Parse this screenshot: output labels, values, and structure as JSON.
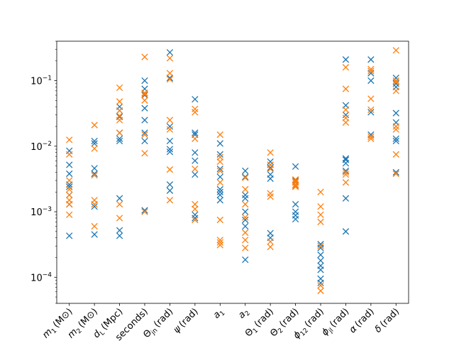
{
  "chart_data": {
    "type": "scatter",
    "title": "",
    "xlabel": "",
    "ylabel": "",
    "yscale": "log",
    "ylim": [
      4e-05,
      0.4
    ],
    "grid": false,
    "legend": "none",
    "marker": "x",
    "y_ticks": [
      {
        "value": 0.0001,
        "label": "10^-4"
      },
      {
        "value": 0.001,
        "label": "10^-3"
      },
      {
        "value": 0.01,
        "label": "10^-2"
      },
      {
        "value": 0.1,
        "label": "10^-1"
      }
    ],
    "categories": [
      {
        "base": "m",
        "sub": "1",
        "unit": "(M⊙)"
      },
      {
        "base": "m",
        "sub": "2",
        "unit": "(M⊙)"
      },
      {
        "base": "d",
        "sub": "L",
        "unit": "(Mpc)"
      },
      {
        "base": "seconds)",
        "sub": "",
        "unit": ""
      },
      {
        "base": "Θ",
        "sub": "jn",
        "unit": "(rad)"
      },
      {
        "base": "ψ",
        "sub": "",
        "unit": "(rad)"
      },
      {
        "base": "a",
        "sub": "1",
        "unit": ""
      },
      {
        "base": "a",
        "sub": "2",
        "unit": ""
      },
      {
        "base": "Θ",
        "sub": "1",
        "unit": "(rad)"
      },
      {
        "base": "Θ",
        "sub": "2",
        "unit": "(rad)"
      },
      {
        "base": "ϕ",
        "sub": "12",
        "unit": "(rad)"
      },
      {
        "base": "ϕ",
        "sub": "jl",
        "unit": "(rad)"
      },
      {
        "base": "α",
        "sub": "",
        "unit": "(rad)"
      },
      {
        "base": "δ",
        "sub": "",
        "unit": "(rad)"
      }
    ],
    "series": [
      {
        "color": "#1f77b4",
        "values": [
          [
            0.00043,
            0.0013,
            0.0018,
            0.0024,
            0.0026,
            0.0038,
            0.0052,
            0.0085
          ],
          [
            0.00045,
            0.0012,
            0.0038,
            0.0046,
            0.011,
            0.012
          ],
          [
            0.00043,
            0.00052,
            0.0016,
            0.012,
            0.013,
            0.016,
            0.028,
            0.035,
            0.04
          ],
          [
            0.00105,
            0.012,
            0.016,
            0.025,
            0.038,
            0.06,
            0.075,
            0.1
          ],
          [
            0.0021,
            0.0026,
            0.0082,
            0.009,
            0.012,
            0.02,
            0.11,
            0.27
          ],
          [
            0.0008,
            0.0009,
            0.0037,
            0.006,
            0.008,
            0.015,
            0.016,
            0.052
          ],
          [
            0.0015,
            0.0018,
            0.002,
            0.0022,
            0.0034,
            0.0045,
            0.0075,
            0.011
          ],
          [
            0.000185,
            0.0006,
            0.00075,
            0.001,
            0.0016,
            0.0018,
            0.0034,
            0.0042
          ],
          [
            0.0004,
            0.00047,
            0.0032,
            0.0037,
            0.0047,
            0.0052,
            0.0058
          ],
          [
            0.00077,
            0.00088,
            0.001,
            0.0013,
            0.0025,
            0.003,
            0.0049
          ],
          [
            8.2e-05,
            9.5e-05,
            0.00013,
            0.00015,
            0.00018,
            0.00022,
            0.00028,
            0.00032
          ],
          [
            0.0005,
            0.0016,
            0.0042,
            0.0055,
            0.0062,
            0.0065,
            0.03,
            0.042,
            0.21
          ],
          [
            0.015,
            0.033,
            0.1,
            0.13,
            0.21
          ],
          [
            0.004,
            0.012,
            0.013,
            0.023,
            0.032,
            0.08,
            0.09,
            0.11
          ]
        ]
      },
      {
        "color": "#ff7f0e",
        "values": [
          [
            0.0009,
            0.0013,
            0.0015,
            0.0018,
            0.0022,
            0.003,
            0.0075,
            0.0125
          ],
          [
            0.0006,
            0.0013,
            0.0015,
            0.0036,
            0.0092,
            0.021
          ],
          [
            0.0008,
            0.0013,
            0.016,
            0.025,
            0.029,
            0.035,
            0.048,
            0.078
          ],
          [
            0.001,
            0.0078,
            0.015,
            0.05,
            0.062,
            0.065,
            0.23
          ],
          [
            0.0015,
            0.0044,
            0.018,
            0.025,
            0.105,
            0.13,
            0.22
          ],
          [
            0.00075,
            0.0011,
            0.0013,
            0.0045,
            0.013,
            0.033,
            0.037
          ],
          [
            0.00031,
            0.00034,
            0.00037,
            0.00075,
            0.0028,
            0.0042,
            0.0058,
            0.0068,
            0.015
          ],
          [
            0.00028,
            0.00037,
            0.00048,
            0.00082,
            0.0013,
            0.0022,
            0.0033
          ],
          [
            0.00029,
            0.00035,
            0.0017,
            0.0019,
            0.0045,
            0.0052,
            0.008
          ],
          [
            0.0024,
            0.0025,
            0.0026,
            0.0028,
            0.0029,
            0.0031
          ],
          [
            6.2e-05,
            7.5e-05,
            0.0003,
            0.0007,
            0.0009,
            0.0012,
            0.002
          ],
          [
            0.0028,
            0.0037,
            0.004,
            0.023,
            0.027,
            0.036,
            0.075,
            0.16
          ],
          [
            0.013,
            0.014,
            0.036,
            0.053,
            0.14,
            0.15
          ],
          [
            0.0038,
            0.0075,
            0.018,
            0.02,
            0.07,
            0.095,
            0.1,
            0.29
          ]
        ]
      }
    ]
  }
}
